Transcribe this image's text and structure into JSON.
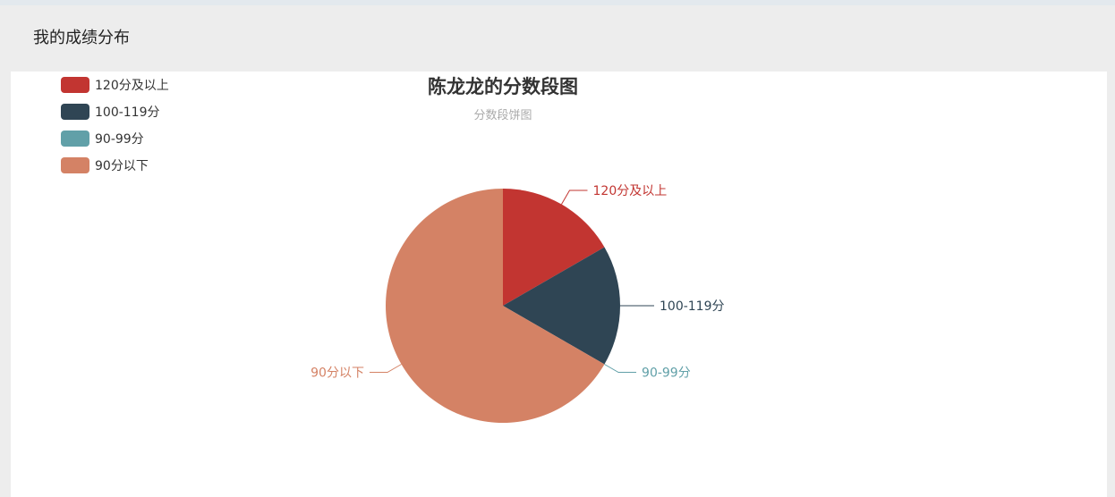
{
  "panel": {
    "title": "我的成绩分布"
  },
  "colors": {
    "background": "#ededed",
    "card": "#ffffff"
  },
  "chart_data": {
    "type": "pie",
    "title": "陈龙龙的分数段图",
    "subtitle": "分数段饼图",
    "legend_position": "top-left",
    "categories": [
      "120分及以上",
      "100-119分",
      "90-99分",
      "90分以下"
    ],
    "values": [
      2,
      2,
      0,
      8
    ],
    "colors": [
      "#c23531",
      "#2f4554",
      "#61a0a8",
      "#d48265"
    ]
  }
}
